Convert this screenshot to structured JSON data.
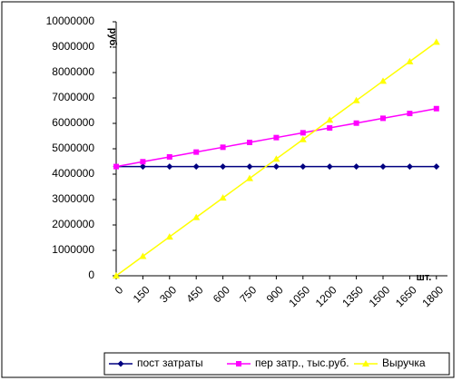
{
  "chart_data": {
    "type": "line",
    "categories": [
      "0",
      "150",
      "300",
      "450",
      "600",
      "750",
      "900",
      "1050",
      "1200",
      "1350",
      "1500",
      "1650",
      "1800"
    ],
    "series": [
      {
        "name": "пост затраты",
        "color": "#000080",
        "marker": "diamond",
        "values": [
          4300000,
          4300000,
          4300000,
          4300000,
          4300000,
          4300000,
          4300000,
          4300000,
          4300000,
          4300000,
          4300000,
          4300000,
          4300000
        ]
      },
      {
        "name": "пер затр., тыс.руб.",
        "color": "#ff00ff",
        "marker": "square",
        "values": [
          4300000,
          4490000,
          4680000,
          4870000,
          5060000,
          5250000,
          5440000,
          5630000,
          5820000,
          6010000,
          6200000,
          6390000,
          6580000
        ]
      },
      {
        "name": "Выручка",
        "color": "#ffff00",
        "marker": "triangle",
        "values": [
          0,
          767000,
          1533000,
          2300000,
          3067000,
          3833000,
          4600000,
          5367000,
          6133000,
          6900000,
          7667000,
          8433000,
          9200000
        ]
      }
    ],
    "y_label": "руб.",
    "x_label": "шт.",
    "ylim": [
      0,
      10000000
    ],
    "yticks": [
      0,
      1000000,
      2000000,
      3000000,
      4000000,
      5000000,
      6000000,
      7000000,
      8000000,
      9000000,
      10000000
    ],
    "grid": false,
    "legend": "bottom"
  }
}
